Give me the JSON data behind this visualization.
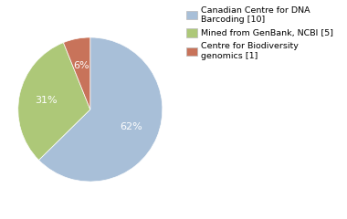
{
  "legend_labels": [
    "Canadian Centre for DNA\nBarcoding [10]",
    "Mined from GenBank, NCBI [5]",
    "Centre for Biodiversity\ngenomics [1]"
  ],
  "values": [
    62,
    31,
    6
  ],
  "colors": [
    "#a8bfd8",
    "#adc878",
    "#c8735a"
  ],
  "pct_labels": [
    "62%",
    "31%",
    "6%"
  ],
  "startangle": 90,
  "text_color": "white",
  "figsize": [
    3.8,
    2.4
  ],
  "dpi": 100
}
